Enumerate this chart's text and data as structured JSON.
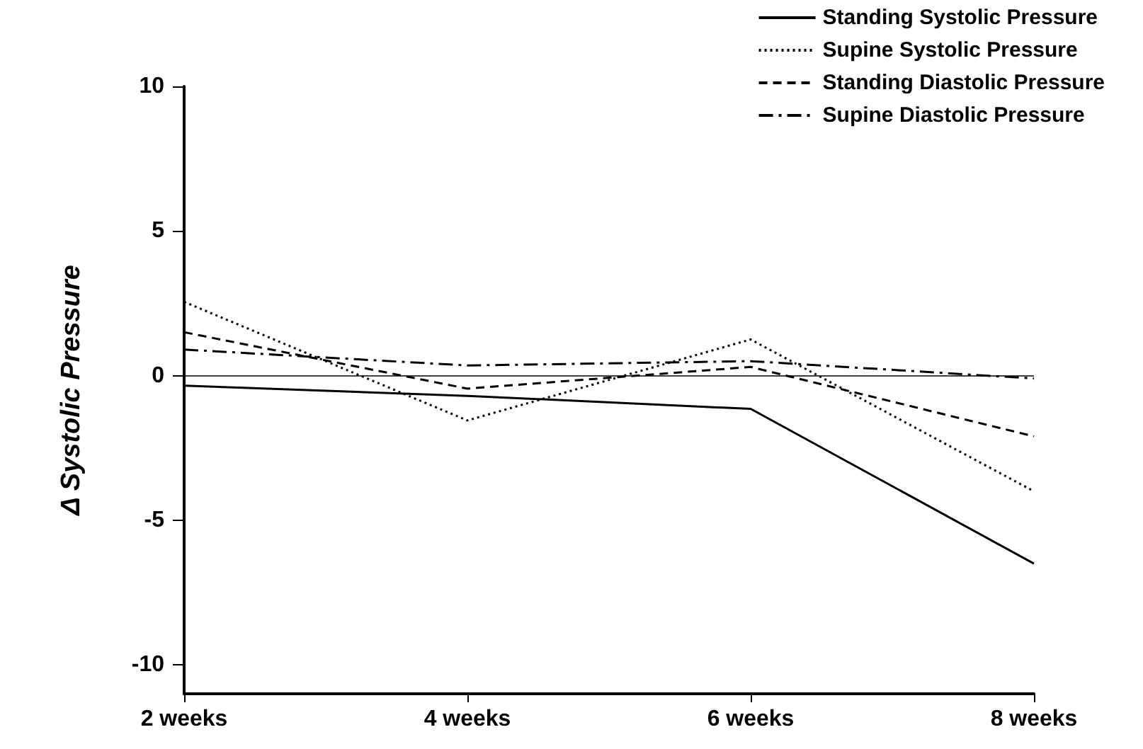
{
  "chart_data": {
    "type": "line",
    "ylabel": "Δ Systolic Pressure",
    "categories": [
      "2 weeks",
      "4 weeks",
      "6 weeks",
      "8 weeks"
    ],
    "series": [
      {
        "name": "Standing Systolic Pressure",
        "color": "#000000",
        "line_style": "solid",
        "values": [
          -0.35,
          -0.7,
          -1.15,
          -6.5
        ]
      },
      {
        "name": "Supine Systolic Pressure",
        "color": "#000000",
        "line_style": "dotted",
        "values": [
          2.55,
          -1.55,
          1.25,
          -4.0
        ]
      },
      {
        "name": "Standing Diastolic Pressure",
        "color": "#000000",
        "line_style": "dashed",
        "values": [
          1.5,
          -0.45,
          0.3,
          -2.1
        ]
      },
      {
        "name": "Supine Diastolic Pressure",
        "color": "#000000",
        "line_style": "dashdot",
        "values": [
          0.9,
          0.35,
          0.5,
          -0.1
        ]
      }
    ],
    "ylim": [
      -11,
      10
    ],
    "yticks": [
      -10,
      -5,
      0,
      5,
      10
    ],
    "ref_lines": [
      {
        "axis": "y",
        "value": 0,
        "color": "#000000"
      }
    ],
    "legend": "top right",
    "marker": "none",
    "grid": false
  }
}
